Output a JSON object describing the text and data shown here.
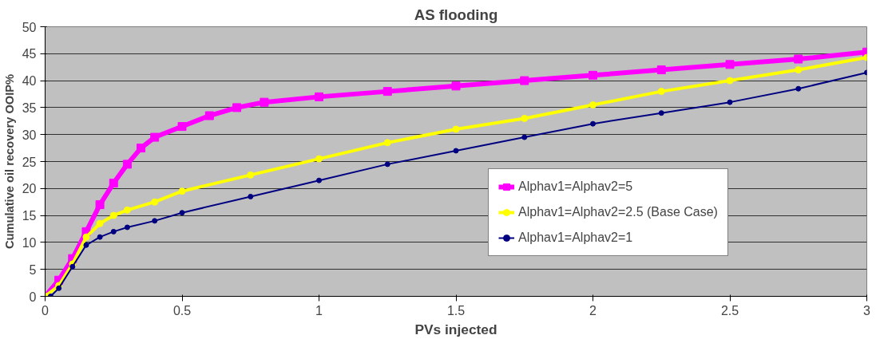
{
  "chart_data": {
    "type": "line",
    "title": "AS flooding",
    "xlabel": "PVs injected",
    "ylabel": "Cumulative oil recovery OOIP%",
    "xlim": [
      0,
      3
    ],
    "ylim": [
      0,
      50
    ],
    "xticks": [
      0,
      0.5,
      1,
      1.5,
      2,
      2.5,
      3
    ],
    "yticks": [
      0,
      5,
      10,
      15,
      20,
      25,
      30,
      35,
      40,
      45,
      50
    ],
    "grid": "y",
    "legend": "right",
    "line_style": "solid",
    "series": [
      {
        "name": "Alphav1=Alphav2=5",
        "color": "#ff00ff",
        "marker": "square",
        "x": [
          0,
          0.05,
          0.1,
          0.15,
          0.2,
          0.25,
          0.3,
          0.35,
          0.4,
          0.5,
          0.6,
          0.7,
          0.8,
          1.0,
          1.25,
          1.5,
          1.75,
          2,
          2.25,
          2.5,
          2.75,
          3
        ],
        "values": [
          0,
          3,
          7,
          12,
          17,
          21,
          24.5,
          27.5,
          29.5,
          31.5,
          33.5,
          35,
          36,
          37,
          38,
          39,
          40,
          41,
          42,
          43,
          44,
          45.3
        ]
      },
      {
        "name": "Alphav1=Alphav2=2.5 (Base Case)",
        "color": "#ffff00",
        "marker": "circle",
        "x": [
          0,
          0.05,
          0.1,
          0.15,
          0.2,
          0.25,
          0.3,
          0.4,
          0.5,
          0.75,
          1,
          1.25,
          1.5,
          1.75,
          2,
          2.25,
          2.5,
          2.75,
          3
        ],
        "values": [
          0,
          2,
          6,
          11,
          13.5,
          15,
          16,
          17.5,
          19.5,
          22.5,
          25.5,
          28.5,
          31,
          33,
          35.5,
          38,
          40,
          42,
          44.3
        ]
      },
      {
        "name": "Alphav1=Alphav2=1",
        "color": "#000080",
        "marker": "circle",
        "x": [
          0.02,
          0.05,
          0.1,
          0.15,
          0.2,
          0.25,
          0.3,
          0.4,
          0.5,
          0.75,
          1,
          1.25,
          1.5,
          1.75,
          2,
          2.25,
          2.5,
          2.75,
          3
        ],
        "values": [
          0,
          1.5,
          5.5,
          9.5,
          11,
          12,
          12.8,
          14,
          15.5,
          18.5,
          21.5,
          24.5,
          27,
          29.5,
          32,
          34,
          36,
          38.5,
          41.5
        ]
      }
    ]
  }
}
